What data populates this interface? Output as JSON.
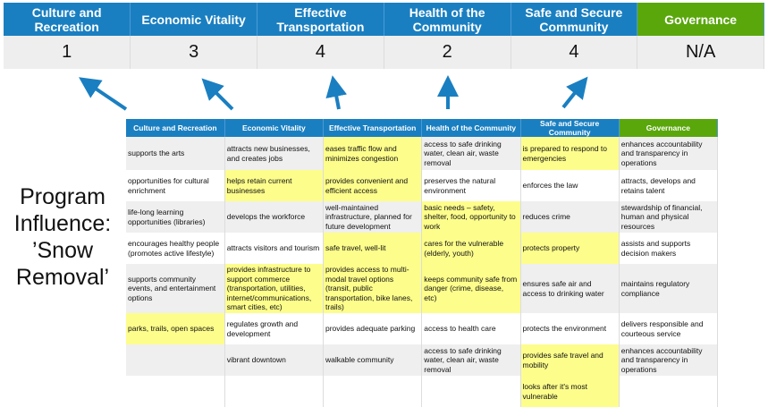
{
  "categories": [
    "Culture and Recreation",
    "Economic Vitality",
    "Effective Transportation",
    "Health of the Community",
    "Safe and Secure Community",
    "Governance"
  ],
  "scores": [
    "1",
    "3",
    "4",
    "2",
    "4",
    "N/A"
  ],
  "colors": {
    "header_blue": "#1a7fc1",
    "governance_green": "#5aa70c",
    "highlight_yellow": "#fdfd8c",
    "arrow_blue": "#1a7fc1"
  },
  "influence_label": [
    "Program",
    "Influence:",
    "’Snow",
    "Removal’"
  ],
  "matrix": {
    "headers": [
      "Culture and Recreation",
      "Economic Vitality",
      "Effective Transportation",
      "Health of the Community",
      "Safe and Secure Community",
      "Governance"
    ],
    "rows": [
      {
        "cells": [
          "supports the arts",
          "attracts new businesses, and creates jobs",
          "eases traffic flow and minimizes congestion",
          "access to safe drinking water, clean air, waste removal",
          "is prepared to respond to emergencies",
          "enhances accountability and transparency in operations"
        ],
        "highlighted": [
          2,
          4
        ]
      },
      {
        "cells": [
          "opportunities for cultural enrichment",
          "helps retain current businesses",
          "provides convenient and efficient access",
          "preserves the natural environment",
          "enforces the law",
          "attracts, develops and retains talent"
        ],
        "highlighted": [
          1,
          2
        ]
      },
      {
        "cells": [
          "life-long learning opportunities (libraries)",
          "develops the workforce",
          "well-maintained infrastructure, planned for future development",
          "basic needs – safety, shelter, food, opportunity to work",
          "reduces crime",
          "stewardship of financial, human and physical resources"
        ],
        "highlighted": [
          3
        ]
      },
      {
        "cells": [
          "encourages healthy people (promotes active lifestyle)",
          "attracts visitors and tourism",
          "safe travel, well-lit",
          "cares for the vulnerable (elderly, youth)",
          "protects property",
          "assists and supports decision makers"
        ],
        "highlighted": [
          2,
          3,
          4
        ]
      },
      {
        "cells": [
          "supports community events, and entertainment options",
          "provides infrastructure to support commerce (transportation, utilities, internet/communications, smart cities, etc)",
          "provides access to multi-modal travel options (transit, public transportation, bike lanes, trails)",
          "keeps community safe from danger (crime, disease, etc)",
          "ensures safe air and access to drinking water",
          "maintains regulatory compliance"
        ],
        "highlighted": [
          1,
          2,
          3
        ]
      },
      {
        "cells": [
          "parks, trails, open spaces",
          "regulates growth and development",
          "provides adequate parking",
          "access to health care",
          "protects the environment",
          "delivers responsible and courteous service"
        ],
        "highlighted": [
          0
        ]
      },
      {
        "cells": [
          "",
          "vibrant downtown",
          "walkable community",
          "access to safe drinking water, clean air, waste removal",
          "provides safe travel and mobility",
          "enhances accountability and transparency in operations"
        ],
        "highlighted": [
          4
        ]
      },
      {
        "cells": [
          "",
          "",
          "",
          "",
          "looks after it's most vulnerable",
          ""
        ],
        "highlighted": [
          4
        ]
      }
    ]
  }
}
